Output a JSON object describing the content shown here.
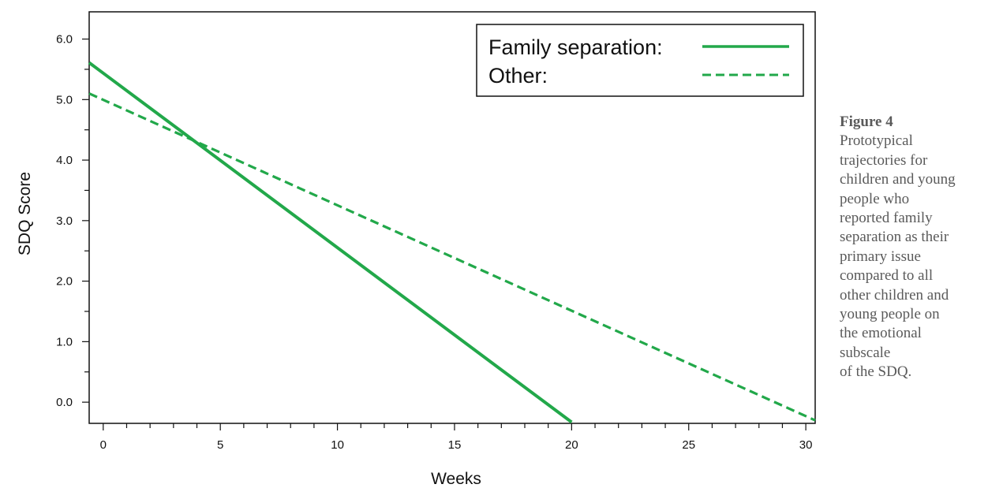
{
  "figure": {
    "label": "Figure 4",
    "caption": "Prototypical\ntrajectories for\nchildren and young\npeople who\nreported family\nseparation as their\nprimary issue\ncompared to all\nother children and\nyoung people on\nthe emotional\nsubscale\nof the SDQ."
  },
  "colors": {
    "series": "#22a84a",
    "axis": "#111111"
  },
  "chart_data": {
    "type": "line",
    "title": "",
    "xlabel": "Weeks",
    "ylabel": "SDQ Score",
    "xlim": [
      -0.6,
      30.4
    ],
    "ylim": [
      -0.35,
      6.45
    ],
    "xticks": [
      0,
      5,
      10,
      15,
      20,
      25,
      30
    ],
    "xtick_labels": [
      "0",
      "5",
      "10",
      "15",
      "20",
      "25",
      "30"
    ],
    "x_minor_step": 1,
    "yticks": [
      0,
      1,
      2,
      3,
      4,
      5,
      6
    ],
    "ytick_labels": [
      "0.0",
      "1.0",
      "2.0",
      "3.0",
      "4.0",
      "5.0",
      "6.0"
    ],
    "y_minor_step": 0.5,
    "grid": false,
    "legend_position": "top-right",
    "series": [
      {
        "name": "Family separation:",
        "style": "solid",
        "x": [
          -0.6,
          20.0
        ],
        "y": [
          5.61,
          -0.33
        ]
      },
      {
        "name": "Other:",
        "style": "dashed",
        "x": [
          -0.6,
          30.4
        ],
        "y": [
          5.1,
          -0.3
        ]
      }
    ]
  }
}
